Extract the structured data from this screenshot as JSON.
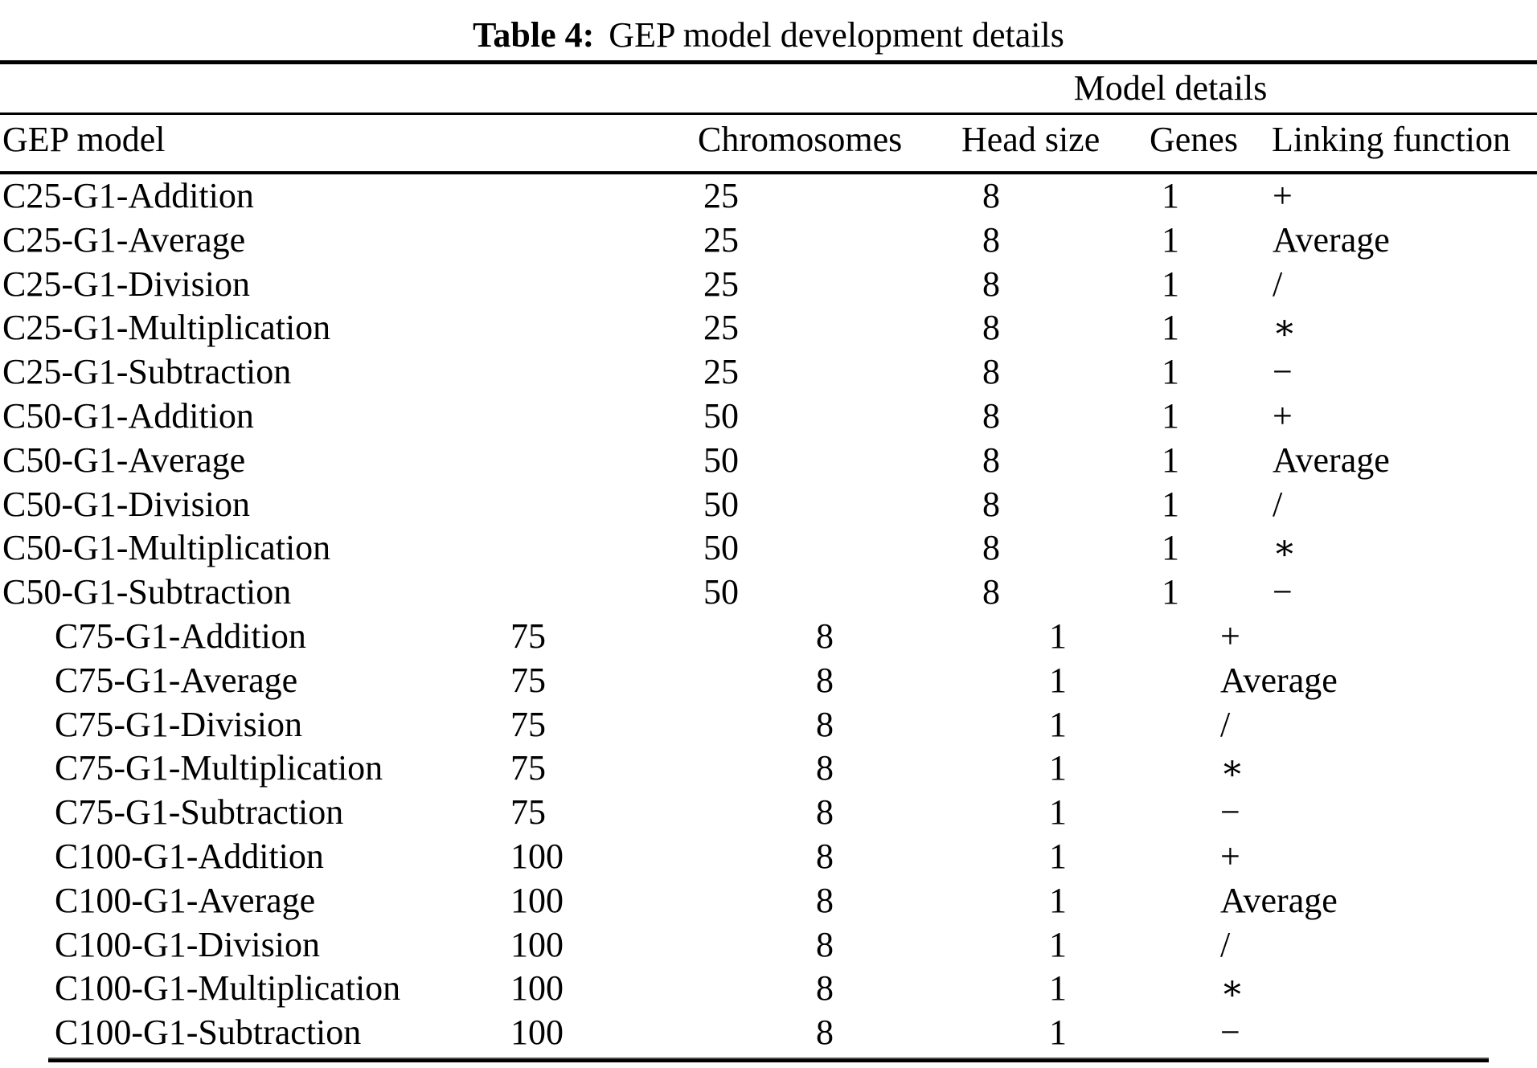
{
  "caption": {
    "label": "Table 4:",
    "text": "GEP model development details"
  },
  "table": {
    "group_header": "Model details",
    "columns": [
      "GEP model",
      "Chromosomes",
      "Head size",
      "Genes",
      "Linking function"
    ],
    "rows": [
      {
        "model": "C25-G1-Addition",
        "chromosomes": "25",
        "head_size": "8",
        "genes": "1",
        "linking_function": "+"
      },
      {
        "model": "C25-G1-Average",
        "chromosomes": "25",
        "head_size": "8",
        "genes": "1",
        "linking_function": "Average"
      },
      {
        "model": "C25-G1-Division",
        "chromosomes": "25",
        "head_size": "8",
        "genes": "1",
        "linking_function": "/"
      },
      {
        "model": "C25-G1-Multiplication",
        "chromosomes": "25",
        "head_size": "8",
        "genes": "1",
        "linking_function": "∗"
      },
      {
        "model": "C25-G1-Subtraction",
        "chromosomes": "25",
        "head_size": "8",
        "genes": "1",
        "linking_function": "−"
      },
      {
        "model": "C50-G1-Addition",
        "chromosomes": "50",
        "head_size": "8",
        "genes": "1",
        "linking_function": "+"
      },
      {
        "model": "C50-G1-Average",
        "chromosomes": "50",
        "head_size": "8",
        "genes": "1",
        "linking_function": "Average"
      },
      {
        "model": "C50-G1-Division",
        "chromosomes": "50",
        "head_size": "8",
        "genes": "1",
        "linking_function": "/"
      },
      {
        "model": "C50-G1-Multiplication",
        "chromosomes": "50",
        "head_size": "8",
        "genes": "1",
        "linking_function": "∗"
      },
      {
        "model": "C50-G1-Subtraction",
        "chromosomes": "50",
        "head_size": "8",
        "genes": "1",
        "linking_function": "−"
      },
      {
        "model": "C75-G1-Addition",
        "chromosomes": "75",
        "head_size": "8",
        "genes": "1",
        "linking_function": "+"
      },
      {
        "model": "C75-G1-Average",
        "chromosomes": "75",
        "head_size": "8",
        "genes": "1",
        "linking_function": "Average"
      },
      {
        "model": "C75-G1-Division",
        "chromosomes": "75",
        "head_size": "8",
        "genes": "1",
        "linking_function": "/"
      },
      {
        "model": "C75-G1-Multiplication",
        "chromosomes": "75",
        "head_size": "8",
        "genes": "1",
        "linking_function": "∗"
      },
      {
        "model": "C75-G1-Subtraction",
        "chromosomes": "75",
        "head_size": "8",
        "genes": "1",
        "linking_function": "−"
      },
      {
        "model": "C100-G1-Addition",
        "chromosomes": "100",
        "head_size": "8",
        "genes": "1",
        "linking_function": "+"
      },
      {
        "model": "C100-G1-Average",
        "chromosomes": "100",
        "head_size": "8",
        "genes": "1",
        "linking_function": "Average"
      },
      {
        "model": "C100-G1-Division",
        "chromosomes": "100",
        "head_size": "8",
        "genes": "1",
        "linking_function": "/"
      },
      {
        "model": "C100-G1-Multiplication",
        "chromosomes": "100",
        "head_size": "8",
        "genes": "1",
        "linking_function": "∗"
      },
      {
        "model": "C100-G1-Subtraction",
        "chromosomes": "100",
        "head_size": "8",
        "genes": "1",
        "linking_function": "−"
      }
    ]
  }
}
